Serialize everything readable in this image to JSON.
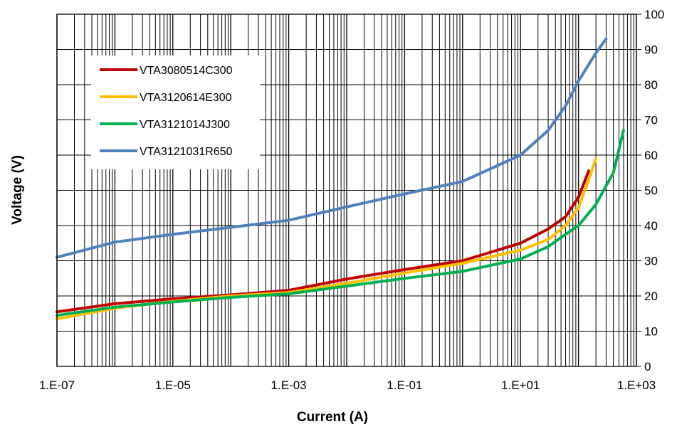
{
  "chart_data": {
    "type": "line",
    "title": "",
    "xlabel": "Current (A)",
    "ylabel": "Voltage (V)",
    "x_scale": "log",
    "xlim": [
      1e-07,
      1000
    ],
    "ylim": [
      0,
      100
    ],
    "x_ticks": [
      1e-07,
      1e-05,
      0.001,
      0.1,
      10,
      1000
    ],
    "x_tick_labels": [
      "1.E-07",
      "1.E-05",
      "1.E-03",
      "1.E-01",
      "1.E+01",
      "1.E+03"
    ],
    "y_ticks": [
      0,
      10,
      20,
      30,
      40,
      50,
      60,
      70,
      80,
      90,
      100
    ],
    "y_tick_labels": [
      "0",
      "10",
      "20",
      "30",
      "40",
      "50",
      "60",
      "70",
      "80",
      "90",
      "100"
    ],
    "y_axis_side": "right",
    "grid": {
      "x_major": true,
      "x_minor": true,
      "y_major": true
    },
    "legend_position": "upper-left",
    "series": [
      {
        "name": "VTA3080514C300",
        "color": "#C00000",
        "x": [
          1e-07,
          1e-06,
          1e-05,
          0.0001,
          0.001,
          0.01,
          0.1,
          1,
          10,
          30,
          60,
          100,
          150
        ],
        "y": [
          15.5,
          17.8,
          19.2,
          20.3,
          21.6,
          24.8,
          27.5,
          30.0,
          35.0,
          39.0,
          42.5,
          48.0,
          55.5
        ]
      },
      {
        "name": "VTA3120614E300",
        "color": "#FFC000",
        "x": [
          1e-07,
          1e-06,
          1e-05,
          0.0001,
          0.001,
          0.01,
          0.1,
          1,
          10,
          30,
          60,
          100,
          150,
          200
        ],
        "y": [
          13.5,
          16.5,
          18.5,
          20.0,
          21.0,
          23.6,
          26.5,
          29.3,
          33.0,
          36.0,
          40.0,
          45.0,
          53.0,
          59.0
        ]
      },
      {
        "name": "VTA3121014J300",
        "color": "#00B050",
        "x": [
          1e-07,
          1e-06,
          1e-05,
          0.0001,
          0.001,
          0.01,
          0.1,
          1,
          10,
          30,
          60,
          100,
          200,
          400,
          600
        ],
        "y": [
          14.5,
          16.8,
          18.3,
          19.6,
          20.6,
          22.8,
          25.0,
          27.0,
          30.5,
          34.0,
          37.5,
          40.0,
          46.0,
          55.0,
          67.0
        ]
      },
      {
        "name": "VTA3121031R650",
        "color": "#4F81BD",
        "x": [
          1e-07,
          1e-06,
          1e-05,
          0.0001,
          0.001,
          0.01,
          0.1,
          1,
          10,
          30,
          60,
          100,
          200,
          300
        ],
        "y": [
          31.0,
          35.3,
          37.5,
          39.5,
          41.5,
          45.3,
          49.0,
          52.5,
          60.0,
          67.0,
          74.0,
          81.0,
          89.0,
          93.0
        ]
      }
    ]
  }
}
